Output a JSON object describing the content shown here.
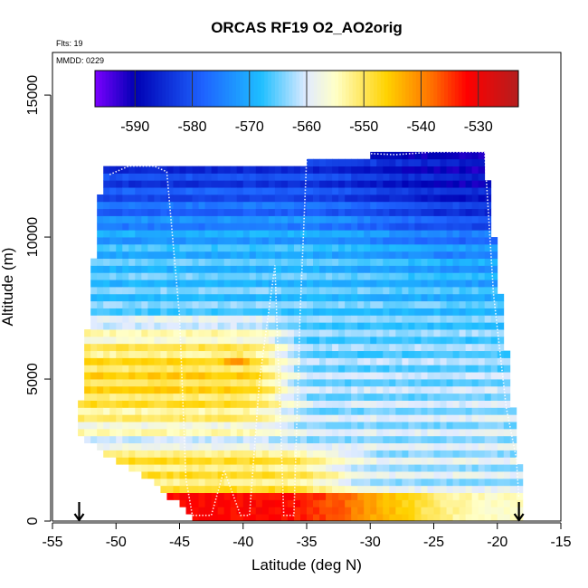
{
  "chart_data": {
    "type": "heatmap",
    "title": "ORCAS RF19 O2_AO2orig",
    "xlabel": "Latitude (deg N)",
    "ylabel": "Altitude (m)",
    "xlim": [
      -55,
      -15
    ],
    "ylim": [
      0,
      16500
    ],
    "x_ticks": [
      -55,
      -50,
      -45,
      -40,
      -35,
      -30,
      -25,
      -20,
      -15
    ],
    "y_ticks": [
      0,
      5000,
      10000,
      15000
    ],
    "notes": {
      "flights": "Flts: 19",
      "date": "MMDD: 0229"
    },
    "colorbar": {
      "range": [
        -597,
        -523
      ],
      "ticks": [
        -590,
        -580,
        -570,
        -560,
        -550,
        -540,
        -530
      ],
      "colors": [
        "#7b00ff",
        "#0000b4",
        "#1e64ff",
        "#1ebeff",
        "#e1ebff",
        "#ffffc8",
        "#ffd200",
        "#ff6e00",
        "#ff0000",
        "#b41e1e"
      ],
      "stops": [
        -597,
        -590,
        -578,
        -568,
        -560,
        -555,
        -546,
        -538,
        -532,
        -523
      ]
    },
    "markers": [
      {
        "label": "start",
        "lat": -52.9,
        "alt": 0
      },
      {
        "label": "end",
        "lat": -18.3,
        "alt": 0
      }
    ],
    "field": {
      "lat_min": -53.0,
      "lat_max": -18.0,
      "lat_step": 0.5,
      "alt_step": 250,
      "top_edge": [
        [
          -50.5,
          12500
        ],
        [
          -35,
          12500
        ],
        [
          -35,
          12800
        ],
        [
          -21,
          13000
        ]
      ],
      "bottom_edge": [
        [
          -53,
          3000
        ],
        [
          -50.5,
          2300
        ],
        [
          -47.5,
          1500
        ],
        [
          -45,
          600
        ],
        [
          -44,
          0
        ],
        [
          -18,
          0
        ]
      ],
      "left_edge": [
        [
          -51,
          12500
        ],
        [
          -52,
          8000
        ],
        [
          -53,
          3000
        ]
      ],
      "right_edge": [
        [
          -21,
          13000
        ],
        [
          -20,
          9000
        ],
        [
          -19,
          5000
        ],
        [
          -18,
          1000
        ]
      ],
      "surface_band": {
        "alt_max": 1000,
        "value_high": -532,
        "value_low": -555,
        "lat_hot": -38
      },
      "warm_layer": {
        "alt_min": 2500,
        "alt_max": 7500,
        "lat_warm_end": -40,
        "value": -548
      },
      "upper_value": -583,
      "mid_value": -567,
      "hot_spot": {
        "lat": -40.5,
        "alt": 5700,
        "value": -540
      }
    },
    "flight_track": [
      [
        -50.5,
        12200
      ],
      [
        -49,
        12500
      ],
      [
        -47,
        12500
      ],
      [
        -46,
        12300
      ],
      [
        -45,
        7200
      ],
      [
        -44.5,
        1500
      ],
      [
        -44,
        200
      ],
      [
        -42.5,
        200
      ],
      [
        -41.5,
        1800
      ],
      [
        -40.2,
        200
      ],
      [
        -39.5,
        200
      ],
      [
        -38.7,
        5000
      ],
      [
        -37.5,
        9000
      ],
      [
        -36.8,
        200
      ],
      [
        -36,
        200
      ],
      [
        -35.5,
        7500
      ],
      [
        -35,
        12800
      ],
      [
        -33,
        13000
      ],
      [
        -28,
        12900
      ],
      [
        -25,
        13000
      ],
      [
        -21,
        13000
      ],
      [
        -20.3,
        8000
      ],
      [
        -19.3,
        4000
      ],
      [
        -18.5,
        2200
      ],
      [
        -18.3,
        800
      ]
    ]
  }
}
